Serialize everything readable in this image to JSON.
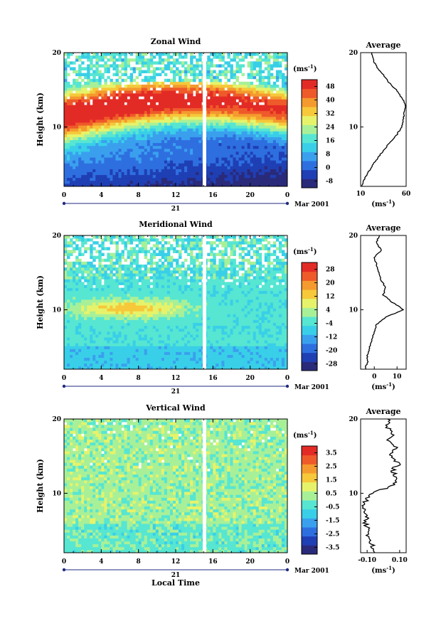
{
  "figure": {
    "colors": [
      "#2a2a7a",
      "#1f3fb4",
      "#2e6fe0",
      "#3aa0ee",
      "#39cfe8",
      "#56e6d2",
      "#a8f098",
      "#e6f36a",
      "#f6c83a",
      "#f49a2e",
      "#ef5a2a",
      "#e32b26"
    ]
  },
  "chart_data": [
    {
      "type": "heatmap",
      "title": "Zonal Wind",
      "xlabel": "",
      "ylabel": "Height (km)",
      "x_ticks": [
        "0",
        "4",
        "8",
        "12",
        "16",
        "20",
        "0"
      ],
      "y_ticks": [
        "10",
        "20"
      ],
      "ylim": [
        2,
        20
      ],
      "date_marker": "21",
      "date_label": "Mar 2001",
      "colorbar": {
        "unit": "(ms",
        "unit_exp": "-1",
        "unit_close": ")",
        "labels": [
          "48",
          "40",
          "32",
          "24",
          "16",
          "8",
          "0",
          "-8"
        ],
        "range": [
          -12,
          52
        ]
      },
      "profile": {
        "title": "Average",
        "x_ticks": [
          "10",
          "60"
        ],
        "xlim": [
          10,
          60
        ],
        "y_ticks": [
          "10",
          "20"
        ],
        "xlabel": "(ms",
        "xlabel_exp": "-1",
        "xlabel_close": ")",
        "heights": [
          2,
          3,
          4,
          5,
          6,
          7,
          8,
          9,
          10,
          11,
          12,
          13,
          14,
          15,
          16,
          17,
          18,
          19,
          20
        ],
        "values": [
          11,
          14,
          19,
          24,
          30,
          36,
          43,
          50,
          55,
          57,
          58,
          59,
          55,
          49,
          41,
          35,
          28,
          24,
          22
        ]
      }
    },
    {
      "type": "heatmap",
      "title": "Meridional Wind",
      "xlabel": "",
      "ylabel": "Height (km)",
      "x_ticks": [
        "0",
        "4",
        "8",
        "12",
        "16",
        "20",
        "0"
      ],
      "y_ticks": [
        "10",
        "20"
      ],
      "ylim": [
        2,
        20
      ],
      "date_marker": "21",
      "date_label": "Mar 2001",
      "colorbar": {
        "unit": "(ms",
        "unit_exp": "-1",
        "unit_close": ")",
        "labels": [
          "28",
          "20",
          "12",
          "4",
          "-4",
          "-12",
          "-20",
          "-28"
        ],
        "range": [
          -32,
          32
        ]
      },
      "profile": {
        "title": "Average",
        "x_ticks": [
          "0",
          "10"
        ],
        "xlim": [
          -6,
          14
        ],
        "y_ticks": [
          "10",
          "20"
        ],
        "xlabel": "(ms",
        "xlabel_exp": "-1",
        "xlabel_close": ")",
        "heights": [
          2,
          3,
          4,
          5,
          6,
          7,
          8,
          9,
          10,
          11,
          12,
          13,
          14,
          15,
          16,
          17,
          18,
          19,
          20
        ],
        "values": [
          -4,
          -3,
          -3,
          -2,
          -1,
          0,
          1,
          5,
          13,
          8,
          4,
          5,
          3,
          2,
          1,
          0,
          3,
          1,
          2
        ]
      }
    },
    {
      "type": "heatmap",
      "title": "Vertical Wind",
      "xlabel": "Local Time",
      "ylabel": "Height (km)",
      "x_ticks": [
        "0",
        "4",
        "8",
        "12",
        "16",
        "20",
        "0"
      ],
      "y_ticks": [
        "10",
        "20"
      ],
      "ylim": [
        2,
        20
      ],
      "date_marker": "21",
      "date_label": "Mar 2001",
      "colorbar": {
        "unit": "(ms",
        "unit_exp": "-1",
        "unit_close": ")",
        "labels": [
          "3.5",
          "2.5",
          "1.5",
          "0.5",
          "-0.5",
          "-1.5",
          "-2.5",
          "-3.5"
        ],
        "range": [
          -4,
          4
        ]
      },
      "profile": {
        "title": "Average",
        "x_ticks": [
          "-0.10",
          "0.10"
        ],
        "xlim": [
          -0.14,
          0.14
        ],
        "y_ticks": [
          "10",
          "20"
        ],
        "xlabel": "(ms",
        "xlabel_exp": "-1",
        "xlabel_close": ")",
        "heights": [
          2,
          3,
          4,
          5,
          6,
          7,
          8,
          9,
          10,
          11,
          12,
          13,
          14,
          15,
          16,
          17,
          18,
          19,
          20
        ],
        "values": [
          -0.04,
          -0.07,
          -0.1,
          -0.09,
          -0.11,
          -0.1,
          -0.12,
          -0.11,
          -0.08,
          0.06,
          0.09,
          0.05,
          0.1,
          0.04,
          0.08,
          0.03,
          0.06,
          0.02,
          0.04
        ]
      }
    }
  ]
}
